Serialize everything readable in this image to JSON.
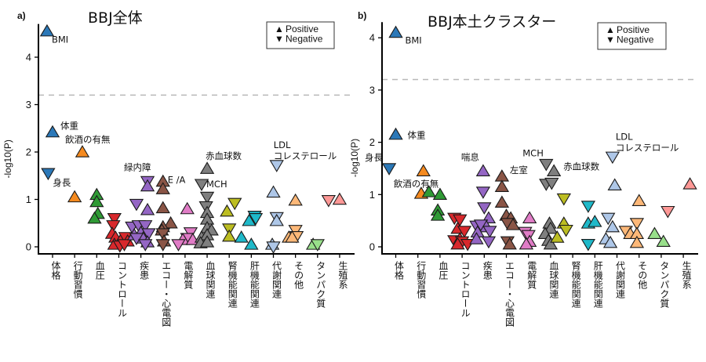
{
  "chart_data": [
    {
      "type": "scatter",
      "panel_tag": "a)",
      "title": "BBJ全体",
      "ylabel": "-log10(P)",
      "xlabel": "",
      "ylim": [
        0,
        4.7
      ],
      "yticks": [
        0,
        1,
        2,
        3,
        4
      ],
      "threshold": 3.2,
      "legend": {
        "position": "top-right",
        "entries": [
          {
            "symbol": "▲",
            "label": "Positive"
          },
          {
            "symbol": "▼",
            "label": "Negative"
          }
        ]
      },
      "categories": [
        "体格",
        "行動習慣",
        "血圧",
        "コントロール",
        "疾患",
        "エコー・心電図",
        "電解質",
        "血球関連",
        "腎機能関連",
        "肝機能関連",
        "代謝関連",
        "その他",
        "タンパク質",
        "生殖系"
      ],
      "category_colors": [
        "#2b78b8",
        "#f58a1f",
        "#2f9a35",
        "#d8282c",
        "#9466c4",
        "#8a5546",
        "#e07cc6",
        "#7f7f7f",
        "#bcbd22",
        "#1fb9c9",
        "#aec7e8",
        "#fdb878",
        "#98df8a",
        "#ff9896"
      ],
      "points": [
        {
          "cat": 0,
          "dx": -0.25,
          "y": 4.55,
          "dir": "up",
          "label": "BMI"
        },
        {
          "cat": 0,
          "dx": 0.0,
          "y": 2.42,
          "dir": "up",
          "label": "体重"
        },
        {
          "cat": 0,
          "dx": -0.2,
          "y": 1.55,
          "dir": "down",
          "label": "身長"
        },
        {
          "cat": 1,
          "dx": 0.35,
          "y": 2.0,
          "dir": "up",
          "label": "飲酒の有無"
        },
        {
          "cat": 1,
          "dx": 0.0,
          "y": 1.05,
          "dir": "up"
        },
        {
          "cat": 2,
          "dx": 0.0,
          "y": 1.1,
          "dir": "up"
        },
        {
          "cat": 2,
          "dx": 0.0,
          "y": 0.95,
          "dir": "up"
        },
        {
          "cat": 2,
          "dx": 0.05,
          "y": 0.7,
          "dir": "up"
        },
        {
          "cat": 2,
          "dx": -0.1,
          "y": 0.6,
          "dir": "up"
        },
        {
          "cat": 3,
          "dx": -0.2,
          "y": 0.6,
          "dir": "down"
        },
        {
          "cat": 3,
          "dx": -0.25,
          "y": 0.45,
          "dir": "down"
        },
        {
          "cat": 3,
          "dx": -0.3,
          "y": 0.28,
          "dir": "up"
        },
        {
          "cat": 3,
          "dx": -0.15,
          "y": 0.2,
          "dir": "up"
        },
        {
          "cat": 3,
          "dx": 0.1,
          "y": 0.15,
          "dir": "up"
        },
        {
          "cat": 3,
          "dx": 0.3,
          "y": 0.2,
          "dir": "down"
        },
        {
          "cat": 3,
          "dx": 0.4,
          "y": 0.12,
          "dir": "up"
        },
        {
          "cat": 3,
          "dx": -0.2,
          "y": 0.05,
          "dir": "up"
        },
        {
          "cat": 3,
          "dx": 0.05,
          "y": 0.02,
          "dir": "down"
        },
        {
          "cat": 3,
          "dx": 0.25,
          "y": 0.05,
          "dir": "down"
        },
        {
          "cat": 4,
          "dx": 0.3,
          "y": 1.38,
          "dir": "down",
          "label": "緑内障"
        },
        {
          "cat": 4,
          "dx": 0.3,
          "y": 1.28,
          "dir": "up"
        },
        {
          "cat": 4,
          "dx": -0.2,
          "y": 0.9,
          "dir": "down"
        },
        {
          "cat": 4,
          "dx": 0.3,
          "y": 0.78,
          "dir": "up"
        },
        {
          "cat": 4,
          "dx": -0.4,
          "y": 0.42,
          "dir": "down"
        },
        {
          "cat": 4,
          "dx": -0.1,
          "y": 0.45,
          "dir": "down"
        },
        {
          "cat": 4,
          "dx": 0.2,
          "y": 0.45,
          "dir": "down"
        },
        {
          "cat": 4,
          "dx": -0.3,
          "y": 0.25,
          "dir": "up"
        },
        {
          "cat": 4,
          "dx": 0.0,
          "y": 0.3,
          "dir": "up"
        },
        {
          "cat": 4,
          "dx": 0.35,
          "y": 0.28,
          "dir": "down"
        },
        {
          "cat": 4,
          "dx": 0.1,
          "y": 0.18,
          "dir": "up"
        },
        {
          "cat": 4,
          "dx": 0.3,
          "y": 0.1,
          "dir": "up"
        },
        {
          "cat": 4,
          "dx": -0.2,
          "y": 0.18,
          "dir": "down"
        },
        {
          "cat": 4,
          "dx": 0.2,
          "y": 0.05,
          "dir": "down"
        },
        {
          "cat": 5,
          "dx": 0.0,
          "y": 1.38,
          "dir": "up",
          "label": "E /A"
        },
        {
          "cat": 5,
          "dx": 0.0,
          "y": 1.22,
          "dir": "up"
        },
        {
          "cat": 5,
          "dx": 0.0,
          "y": 0.82,
          "dir": "up"
        },
        {
          "cat": 5,
          "dx": 0.35,
          "y": 0.5,
          "dir": "up"
        },
        {
          "cat": 5,
          "dx": 0.0,
          "y": 0.42,
          "dir": "up"
        },
        {
          "cat": 5,
          "dx": -0.05,
          "y": 0.35,
          "dir": "up"
        },
        {
          "cat": 5,
          "dx": 0.0,
          "y": 0.28,
          "dir": "down"
        },
        {
          "cat": 5,
          "dx": 0.05,
          "y": 0.12,
          "dir": "up"
        },
        {
          "cat": 5,
          "dx": 0.0,
          "y": 0.05,
          "dir": "down"
        },
        {
          "cat": 6,
          "dx": 0.1,
          "y": 0.8,
          "dir": "up"
        },
        {
          "cat": 6,
          "dx": 0.25,
          "y": 0.3,
          "dir": "down"
        },
        {
          "cat": 6,
          "dx": 0.1,
          "y": 0.18,
          "dir": "down"
        },
        {
          "cat": 6,
          "dx": -0.1,
          "y": 0.15,
          "dir": "up"
        },
        {
          "cat": 6,
          "dx": -0.3,
          "y": 0.05,
          "dir": "down"
        },
        {
          "cat": 6,
          "dx": 0.35,
          "y": 0.15,
          "dir": "up"
        },
        {
          "cat": 7,
          "dx": 0.0,
          "y": 1.65,
          "dir": "up",
          "label": "赤血球数"
        },
        {
          "cat": 7,
          "dx": -0.25,
          "y": 1.32,
          "dir": "down",
          "label": "MCH"
        },
        {
          "cat": 7,
          "dx": 0.0,
          "y": 1.05,
          "dir": "down"
        },
        {
          "cat": 7,
          "dx": -0.05,
          "y": 0.85,
          "dir": "down"
        },
        {
          "cat": 7,
          "dx": 0.0,
          "y": 0.72,
          "dir": "up"
        },
        {
          "cat": 7,
          "dx": 0.0,
          "y": 0.58,
          "dir": "up"
        },
        {
          "cat": 7,
          "dx": 0.0,
          "y": 0.4,
          "dir": "up"
        },
        {
          "cat": 7,
          "dx": 0.2,
          "y": 0.35,
          "dir": "up"
        },
        {
          "cat": 7,
          "dx": -0.25,
          "y": 0.2,
          "dir": "up"
        },
        {
          "cat": 7,
          "dx": 0.0,
          "y": 0.25,
          "dir": "up"
        },
        {
          "cat": 7,
          "dx": -0.3,
          "y": 0.08,
          "dir": "up"
        },
        {
          "cat": 7,
          "dx": 0.0,
          "y": 0.1,
          "dir": "up"
        },
        {
          "cat": 8,
          "dx": 0.25,
          "y": 0.92,
          "dir": "down"
        },
        {
          "cat": 8,
          "dx": -0.1,
          "y": 0.75,
          "dir": "up"
        },
        {
          "cat": 8,
          "dx": 0.0,
          "y": 0.38,
          "dir": "down"
        },
        {
          "cat": 8,
          "dx": 0.0,
          "y": 0.22,
          "dir": "up"
        },
        {
          "cat": 9,
          "dx": 0.15,
          "y": 0.65,
          "dir": "down"
        },
        {
          "cat": 9,
          "dx": -0.1,
          "y": 0.55,
          "dir": "up"
        },
        {
          "cat": 9,
          "dx": 0.2,
          "y": 0.6,
          "dir": "down"
        },
        {
          "cat": 9,
          "dx": -0.45,
          "y": 0.2,
          "dir": "up"
        },
        {
          "cat": 9,
          "dx": 0.0,
          "y": 0.05,
          "dir": "up"
        },
        {
          "cat": 10,
          "dx": 0.15,
          "y": 1.72,
          "dir": "down",
          "label": "LDL\nコレステロール"
        },
        {
          "cat": 10,
          "dx": 0.0,
          "y": 1.15,
          "dir": "up"
        },
        {
          "cat": 10,
          "dx": 0.15,
          "y": 0.62,
          "dir": "down"
        },
        {
          "cat": 10,
          "dx": 0.15,
          "y": 0.55,
          "dir": "up"
        },
        {
          "cat": 10,
          "dx": -0.05,
          "y": 0.05,
          "dir": "up"
        },
        {
          "cat": 10,
          "dx": 0.0,
          "y": 0.0,
          "dir": "down"
        },
        {
          "cat": 11,
          "dx": 0.0,
          "y": 0.98,
          "dir": "up"
        },
        {
          "cat": 11,
          "dx": 0.0,
          "y": 0.35,
          "dir": "down"
        },
        {
          "cat": 11,
          "dx": -0.3,
          "y": 0.2,
          "dir": "up"
        },
        {
          "cat": 11,
          "dx": 0.05,
          "y": 0.22,
          "dir": "down"
        },
        {
          "cat": 11,
          "dx": -0.15,
          "y": 0.2,
          "dir": "up"
        },
        {
          "cat": 12,
          "dx": -0.2,
          "y": 0.05,
          "dir": "up"
        },
        {
          "cat": 12,
          "dx": 0.0,
          "y": 0.05,
          "dir": "down"
        },
        {
          "cat": 13,
          "dx": -0.5,
          "y": 0.98,
          "dir": "down"
        },
        {
          "cat": 13,
          "dx": 0.0,
          "y": 1.0,
          "dir": "up"
        }
      ]
    },
    {
      "type": "scatter",
      "panel_tag": "b)",
      "title": "BBJ本土クラスター",
      "ylabel": "-log10(P)",
      "xlabel": "",
      "ylim": [
        0,
        4.3
      ],
      "yticks": [
        0,
        1,
        2,
        3,
        4
      ],
      "threshold": 3.2,
      "legend": {
        "position": "top-right",
        "entries": [
          {
            "symbol": "▲",
            "label": "Positive"
          },
          {
            "symbol": "▼",
            "label": "Negative"
          }
        ]
      },
      "categories": [
        "体格",
        "行動習慣",
        "血圧",
        "コントロール",
        "疾患",
        "エコー・心電図",
        "電解質",
        "血球関連",
        "腎機能関連",
        "肝機能関連",
        "代謝関連",
        "その他",
        "タンパク質",
        "生殖系"
      ],
      "category_colors": [
        "#2b78b8",
        "#f58a1f",
        "#2f9a35",
        "#d8282c",
        "#9466c4",
        "#8a5546",
        "#e07cc6",
        "#7f7f7f",
        "#bcbd22",
        "#1fb9c9",
        "#aec7e8",
        "#fdb878",
        "#98df8a",
        "#ff9896"
      ],
      "points": [
        {
          "cat": 0,
          "dx": 0.0,
          "y": 4.1,
          "dir": "up",
          "label": "BMI"
        },
        {
          "cat": 0,
          "dx": 0.0,
          "y": 2.15,
          "dir": "up",
          "label": "体重"
        },
        {
          "cat": 0,
          "dx": -0.3,
          "y": 1.5,
          "dir": "down",
          "label": "身長"
        },
        {
          "cat": 1,
          "dx": 0.25,
          "y": 1.45,
          "dir": "up",
          "label": "飲酒の有無"
        },
        {
          "cat": 1,
          "dx": 0.15,
          "y": 1.02,
          "dir": "up"
        },
        {
          "cat": 2,
          "dx": -0.5,
          "y": 1.05,
          "dir": "up"
        },
        {
          "cat": 2,
          "dx": 0.0,
          "y": 1.0,
          "dir": "up"
        },
        {
          "cat": 2,
          "dx": -0.1,
          "y": 0.7,
          "dir": "up"
        },
        {
          "cat": 2,
          "dx": -0.1,
          "y": 0.6,
          "dir": "up"
        },
        {
          "cat": 3,
          "dx": -0.35,
          "y": 0.55,
          "dir": "down"
        },
        {
          "cat": 3,
          "dx": -0.1,
          "y": 0.52,
          "dir": "down"
        },
        {
          "cat": 3,
          "dx": -0.2,
          "y": 0.35,
          "dir": "up"
        },
        {
          "cat": 3,
          "dx": 0.1,
          "y": 0.3,
          "dir": "down"
        },
        {
          "cat": 3,
          "dx": -0.35,
          "y": 0.12,
          "dir": "down"
        },
        {
          "cat": 3,
          "dx": -0.1,
          "y": 0.15,
          "dir": "up"
        },
        {
          "cat": 3,
          "dx": 0.0,
          "y": 0.1,
          "dir": "down"
        },
        {
          "cat": 3,
          "dx": 0.25,
          "y": 0.05,
          "dir": "down"
        },
        {
          "cat": 3,
          "dx": -0.2,
          "y": 0.05,
          "dir": "up"
        },
        {
          "cat": 4,
          "dx": -0.35,
          "y": 0.4,
          "dir": "down"
        },
        {
          "cat": 4,
          "dx": -0.05,
          "y": 1.45,
          "dir": "up",
          "label": "喘息"
        },
        {
          "cat": 4,
          "dx": -0.05,
          "y": 1.05,
          "dir": "down"
        },
        {
          "cat": 4,
          "dx": 0.0,
          "y": 0.75,
          "dir": "down"
        },
        {
          "cat": 4,
          "dx": 0.2,
          "y": 0.55,
          "dir": "up"
        },
        {
          "cat": 4,
          "dx": -0.15,
          "y": 0.42,
          "dir": "down"
        },
        {
          "cat": 4,
          "dx": 0.1,
          "y": 0.38,
          "dir": "up"
        },
        {
          "cat": 4,
          "dx": 0.25,
          "y": 0.3,
          "dir": "down"
        },
        {
          "cat": 4,
          "dx": -0.3,
          "y": 0.28,
          "dir": "up"
        },
        {
          "cat": 4,
          "dx": -0.35,
          "y": 0.15,
          "dir": "up"
        },
        {
          "cat": 4,
          "dx": 0.2,
          "y": 0.1,
          "dir": "down"
        },
        {
          "cat": 5,
          "dx": -0.2,
          "y": 1.35,
          "dir": "up",
          "label": "左室"
        },
        {
          "cat": 5,
          "dx": -0.2,
          "y": 1.15,
          "dir": "up"
        },
        {
          "cat": 5,
          "dx": -0.2,
          "y": 0.85,
          "dir": "up"
        },
        {
          "cat": 5,
          "dx": 0.0,
          "y": 0.6,
          "dir": "up"
        },
        {
          "cat": 5,
          "dx": 0.2,
          "y": 0.55,
          "dir": "up"
        },
        {
          "cat": 5,
          "dx": 0.05,
          "y": 0.45,
          "dir": "down"
        },
        {
          "cat": 5,
          "dx": 0.3,
          "y": 0.42,
          "dir": "up"
        },
        {
          "cat": 5,
          "dx": 0.05,
          "y": 0.1,
          "dir": "down"
        },
        {
          "cat": 5,
          "dx": 0.15,
          "y": 0.05,
          "dir": "up"
        },
        {
          "cat": 6,
          "dx": 0.05,
          "y": 0.55,
          "dir": "up"
        },
        {
          "cat": 6,
          "dx": -0.15,
          "y": 0.28,
          "dir": "down"
        },
        {
          "cat": 6,
          "dx": 0.0,
          "y": 0.22,
          "dir": "down"
        },
        {
          "cat": 6,
          "dx": 0.05,
          "y": 0.1,
          "dir": "up"
        },
        {
          "cat": 6,
          "dx": -0.1,
          "y": 0.05,
          "dir": "up"
        },
        {
          "cat": 7,
          "dx": -0.2,
          "y": 1.58,
          "dir": "down",
          "label": "MCH"
        },
        {
          "cat": 7,
          "dx": 0.15,
          "y": 1.45,
          "dir": "up",
          "label": "赤血球数"
        },
        {
          "cat": 7,
          "dx": -0.2,
          "y": 1.2,
          "dir": "down"
        },
        {
          "cat": 7,
          "dx": 0.05,
          "y": 1.22,
          "dir": "down"
        },
        {
          "cat": 7,
          "dx": -0.05,
          "y": 0.45,
          "dir": "up"
        },
        {
          "cat": 7,
          "dx": 0.0,
          "y": 0.35,
          "dir": "up"
        },
        {
          "cat": 7,
          "dx": -0.25,
          "y": 0.25,
          "dir": "up"
        },
        {
          "cat": 7,
          "dx": -0.1,
          "y": 0.12,
          "dir": "up"
        },
        {
          "cat": 7,
          "dx": 0.0,
          "y": 0.05,
          "dir": "up"
        },
        {
          "cat": 8,
          "dx": -0.4,
          "y": 0.92,
          "dir": "down"
        },
        {
          "cat": 8,
          "dx": -0.4,
          "y": 0.45,
          "dir": "up"
        },
        {
          "cat": 8,
          "dx": -0.3,
          "y": 0.32,
          "dir": "down"
        },
        {
          "cat": 8,
          "dx": -0.7,
          "y": 0.18,
          "dir": "up"
        },
        {
          "cat": 9,
          "dx": -0.3,
          "y": 0.78,
          "dir": "down"
        },
        {
          "cat": 9,
          "dx": -0.3,
          "y": 0.45,
          "dir": "up"
        },
        {
          "cat": 9,
          "dx": 0.0,
          "y": 0.48,
          "dir": "up"
        },
        {
          "cat": 9,
          "dx": -0.3,
          "y": 0.05,
          "dir": "down"
        },
        {
          "cat": 10,
          "dx": -0.2,
          "y": 1.72,
          "dir": "down",
          "label": "LDL\nコレステロール"
        },
        {
          "cat": 10,
          "dx": -0.1,
          "y": 1.18,
          "dir": "up"
        },
        {
          "cat": 10,
          "dx": -0.4,
          "y": 0.55,
          "dir": "down"
        },
        {
          "cat": 10,
          "dx": -0.2,
          "y": 0.38,
          "dir": "up"
        },
        {
          "cat": 10,
          "dx": -0.5,
          "y": 0.15,
          "dir": "up"
        },
        {
          "cat": 10,
          "dx": -0.3,
          "y": 0.08,
          "dir": "up"
        },
        {
          "cat": 11,
          "dx": 0.0,
          "y": 0.88,
          "dir": "up"
        },
        {
          "cat": 11,
          "dx": -0.6,
          "y": 0.3,
          "dir": "down"
        },
        {
          "cat": 11,
          "dx": -0.4,
          "y": 0.25,
          "dir": "up"
        },
        {
          "cat": 11,
          "dx": -0.1,
          "y": 0.45,
          "dir": "down"
        },
        {
          "cat": 11,
          "dx": -0.1,
          "y": 0.25,
          "dir": "up"
        },
        {
          "cat": 11,
          "dx": -0.1,
          "y": 0.08,
          "dir": "up"
        },
        {
          "cat": 12,
          "dx": -0.3,
          "y": 0.25,
          "dir": "up"
        },
        {
          "cat": 12,
          "dx": 0.1,
          "y": 0.1,
          "dir": "up"
        },
        {
          "cat": 13,
          "dx": -0.7,
          "y": 0.68,
          "dir": "down"
        },
        {
          "cat": 13,
          "dx": 0.3,
          "y": 1.2,
          "dir": "up"
        }
      ]
    }
  ]
}
